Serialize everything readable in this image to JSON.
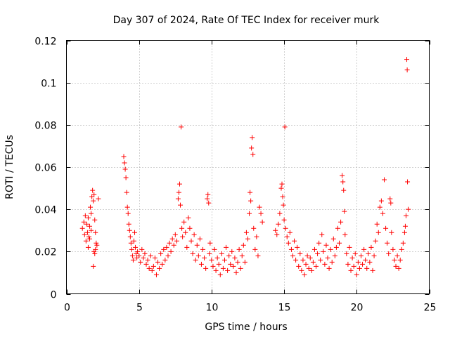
{
  "chart_data": {
    "type": "scatter",
    "title": "Day 307 of 2024, Rate Of TEC Index for receiver murk",
    "xlabel": "GPS time / hours",
    "ylabel": "ROTI / TECUs",
    "xlim": [
      0,
      25
    ],
    "ylim": [
      0,
      0.12
    ],
    "xticks": [
      0,
      5,
      10,
      15,
      20,
      25
    ],
    "xtick_labels": [
      "0",
      "5",
      "10",
      "15",
      "20",
      "25"
    ],
    "yticks": [
      0,
      0.02,
      0.04,
      0.06,
      0.08,
      0.1,
      0.12
    ],
    "ytick_labels": [
      "0",
      "0.02",
      "0.04",
      "0.06",
      "0.08",
      "0.1",
      "0.12"
    ],
    "grid": true,
    "marker": "+",
    "color": "#ff0000",
    "series": [
      {
        "name": "ROTI",
        "points": [
          [
            1.1,
            0.031
          ],
          [
            1.2,
            0.034
          ],
          [
            1.25,
            0.028
          ],
          [
            1.3,
            0.037
          ],
          [
            1.35,
            0.025
          ],
          [
            1.4,
            0.033
          ],
          [
            1.45,
            0.029
          ],
          [
            1.5,
            0.036
          ],
          [
            1.55,
            0.027
          ],
          [
            1.6,
            0.032
          ],
          [
            1.65,
            0.041
          ],
          [
            1.7,
            0.038
          ],
          [
            1.75,
            0.046
          ],
          [
            1.8,
            0.049
          ],
          [
            1.85,
            0.044
          ],
          [
            1.9,
            0.047
          ],
          [
            1.95,
            0.035
          ],
          [
            2.0,
            0.029
          ],
          [
            2.05,
            0.024
          ],
          [
            1.9,
            0.02
          ],
          [
            1.95,
            0.019
          ],
          [
            1.85,
            0.013
          ],
          [
            2.0,
            0.021
          ],
          [
            2.1,
            0.023
          ],
          [
            2.2,
            0.045
          ],
          [
            1.6,
            0.026
          ],
          [
            1.7,
            0.03
          ],
          [
            1.5,
            0.022
          ],
          [
            3.95,
            0.065
          ],
          [
            4.0,
            0.062
          ],
          [
            4.05,
            0.059
          ],
          [
            4.1,
            0.055
          ],
          [
            4.15,
            0.048
          ],
          [
            4.2,
            0.041
          ],
          [
            4.25,
            0.038
          ],
          [
            4.3,
            0.033
          ],
          [
            4.35,
            0.03
          ],
          [
            4.4,
            0.027
          ],
          [
            4.45,
            0.024
          ],
          [
            4.5,
            0.021
          ],
          [
            4.55,
            0.018
          ],
          [
            4.6,
            0.016
          ],
          [
            4.65,
            0.025
          ],
          [
            4.7,
            0.029
          ],
          [
            4.75,
            0.022
          ],
          [
            4.8,
            0.019
          ],
          [
            4.85,
            0.017
          ],
          [
            4.9,
            0.02
          ],
          [
            5.0,
            0.018
          ],
          [
            5.1,
            0.015
          ],
          [
            5.2,
            0.021
          ],
          [
            5.3,
            0.017
          ],
          [
            5.4,
            0.019
          ],
          [
            5.5,
            0.014
          ],
          [
            5.6,
            0.016
          ],
          [
            5.7,
            0.012
          ],
          [
            5.8,
            0.018
          ],
          [
            5.9,
            0.011
          ],
          [
            6.0,
            0.013
          ],
          [
            6.1,
            0.017
          ],
          [
            6.2,
            0.009
          ],
          [
            6.3,
            0.015
          ],
          [
            6.4,
            0.012
          ],
          [
            6.5,
            0.019
          ],
          [
            6.6,
            0.014
          ],
          [
            6.7,
            0.021
          ],
          [
            6.8,
            0.016
          ],
          [
            6.9,
            0.022
          ],
          [
            7.0,
            0.018
          ],
          [
            7.1,
            0.024
          ],
          [
            7.2,
            0.02
          ],
          [
            7.3,
            0.026
          ],
          [
            7.4,
            0.023
          ],
          [
            7.5,
            0.028
          ],
          [
            7.6,
            0.025
          ],
          [
            7.7,
            0.045
          ],
          [
            7.75,
            0.048
          ],
          [
            7.8,
            0.052
          ],
          [
            7.85,
            0.042
          ],
          [
            7.9,
            0.079
          ],
          [
            7.95,
            0.031
          ],
          [
            8.0,
            0.027
          ],
          [
            8.1,
            0.034
          ],
          [
            8.2,
            0.029
          ],
          [
            8.3,
            0.022
          ],
          [
            8.4,
            0.036
          ],
          [
            8.5,
            0.031
          ],
          [
            8.6,
            0.025
          ],
          [
            8.7,
            0.019
          ],
          [
            8.8,
            0.028
          ],
          [
            8.9,
            0.016
          ],
          [
            9.0,
            0.023
          ],
          [
            9.1,
            0.018
          ],
          [
            9.2,
            0.026
          ],
          [
            9.3,
            0.014
          ],
          [
            9.4,
            0.021
          ],
          [
            9.5,
            0.017
          ],
          [
            9.6,
            0.012
          ],
          [
            9.7,
            0.045
          ],
          [
            9.75,
            0.047
          ],
          [
            9.8,
            0.043
          ],
          [
            9.85,
            0.019
          ],
          [
            9.9,
            0.024
          ],
          [
            10.0,
            0.016
          ],
          [
            10.1,
            0.013
          ],
          [
            10.2,
            0.021
          ],
          [
            10.3,
            0.011
          ],
          [
            10.4,
            0.017
          ],
          [
            10.5,
            0.014
          ],
          [
            10.6,
            0.009
          ],
          [
            10.7,
            0.019
          ],
          [
            10.8,
            0.012
          ],
          [
            10.9,
            0.016
          ],
          [
            11.0,
            0.022
          ],
          [
            11.1,
            0.011
          ],
          [
            11.2,
            0.018
          ],
          [
            11.3,
            0.014
          ],
          [
            11.4,
            0.02
          ],
          [
            11.5,
            0.013
          ],
          [
            11.6,
            0.017
          ],
          [
            11.7,
            0.01
          ],
          [
            11.8,
            0.015
          ],
          [
            11.9,
            0.021
          ],
          [
            12.0,
            0.012
          ],
          [
            12.1,
            0.018
          ],
          [
            12.2,
            0.023
          ],
          [
            12.3,
            0.015
          ],
          [
            12.4,
            0.029
          ],
          [
            12.5,
            0.026
          ],
          [
            12.6,
            0.038
          ],
          [
            12.65,
            0.048
          ],
          [
            12.7,
            0.044
          ],
          [
            12.75,
            0.069
          ],
          [
            12.8,
            0.074
          ],
          [
            12.85,
            0.066
          ],
          [
            12.9,
            0.031
          ],
          [
            13.0,
            0.021
          ],
          [
            13.1,
            0.027
          ],
          [
            13.2,
            0.018
          ],
          [
            13.3,
            0.041
          ],
          [
            13.4,
            0.038
          ],
          [
            13.5,
            0.034
          ],
          [
            14.4,
            0.03
          ],
          [
            14.5,
            0.028
          ],
          [
            14.6,
            0.033
          ],
          [
            14.7,
            0.038
          ],
          [
            14.8,
            0.05
          ],
          [
            14.85,
            0.052
          ],
          [
            14.9,
            0.046
          ],
          [
            14.95,
            0.042
          ],
          [
            15.0,
            0.035
          ],
          [
            15.05,
            0.079
          ],
          [
            15.1,
            0.031
          ],
          [
            15.2,
            0.027
          ],
          [
            15.3,
            0.024
          ],
          [
            15.4,
            0.029
          ],
          [
            15.5,
            0.021
          ],
          [
            15.6,
            0.018
          ],
          [
            15.7,
            0.025
          ],
          [
            15.8,
            0.016
          ],
          [
            15.9,
            0.022
          ],
          [
            16.0,
            0.013
          ],
          [
            16.1,
            0.019
          ],
          [
            16.2,
            0.011
          ],
          [
            16.3,
            0.016
          ],
          [
            16.4,
            0.009
          ],
          [
            16.5,
            0.014
          ],
          [
            16.6,
            0.018
          ],
          [
            16.7,
            0.012
          ],
          [
            16.8,
            0.017
          ],
          [
            16.9,
            0.011
          ],
          [
            17.0,
            0.015
          ],
          [
            17.1,
            0.021
          ],
          [
            17.2,
            0.013
          ],
          [
            17.3,
            0.019
          ],
          [
            17.4,
            0.024
          ],
          [
            17.5,
            0.016
          ],
          [
            17.6,
            0.028
          ],
          [
            17.7,
            0.02
          ],
          [
            17.8,
            0.014
          ],
          [
            17.9,
            0.023
          ],
          [
            18.0,
            0.017
          ],
          [
            18.1,
            0.012
          ],
          [
            18.2,
            0.021
          ],
          [
            18.3,
            0.015
          ],
          [
            18.4,
            0.026
          ],
          [
            18.5,
            0.018
          ],
          [
            18.6,
            0.022
          ],
          [
            18.7,
            0.031
          ],
          [
            18.8,
            0.024
          ],
          [
            18.9,
            0.034
          ],
          [
            19.0,
            0.056
          ],
          [
            19.05,
            0.053
          ],
          [
            19.1,
            0.049
          ],
          [
            19.15,
            0.039
          ],
          [
            19.2,
            0.028
          ],
          [
            19.3,
            0.019
          ],
          [
            19.4,
            0.014
          ],
          [
            19.5,
            0.022
          ],
          [
            19.6,
            0.011
          ],
          [
            19.7,
            0.017
          ],
          [
            19.8,
            0.013
          ],
          [
            19.9,
            0.019
          ],
          [
            20.0,
            0.009
          ],
          [
            20.1,
            0.015
          ],
          [
            20.2,
            0.012
          ],
          [
            20.3,
            0.018
          ],
          [
            20.4,
            0.014
          ],
          [
            20.5,
            0.021
          ],
          [
            20.6,
            0.016
          ],
          [
            20.7,
            0.012
          ],
          [
            20.8,
            0.019
          ],
          [
            20.9,
            0.015
          ],
          [
            21.0,
            0.022
          ],
          [
            21.1,
            0.011
          ],
          [
            21.2,
            0.018
          ],
          [
            21.3,
            0.025
          ],
          [
            21.4,
            0.033
          ],
          [
            21.5,
            0.029
          ],
          [
            21.6,
            0.041
          ],
          [
            21.7,
            0.044
          ],
          [
            21.8,
            0.038
          ],
          [
            21.9,
            0.054
          ],
          [
            22.0,
            0.031
          ],
          [
            22.1,
            0.024
          ],
          [
            22.2,
            0.019
          ],
          [
            22.3,
            0.045
          ],
          [
            22.35,
            0.043
          ],
          [
            22.4,
            0.029
          ],
          [
            22.5,
            0.021
          ],
          [
            22.6,
            0.016
          ],
          [
            22.7,
            0.013
          ],
          [
            22.8,
            0.018
          ],
          [
            22.9,
            0.012
          ],
          [
            23.0,
            0.016
          ],
          [
            23.1,
            0.021
          ],
          [
            23.2,
            0.024
          ],
          [
            23.3,
            0.029
          ],
          [
            23.35,
            0.032
          ],
          [
            23.4,
            0.037
          ],
          [
            23.45,
            0.111
          ],
          [
            23.48,
            0.106
          ],
          [
            23.5,
            0.053
          ],
          [
            23.55,
            0.04
          ]
        ]
      }
    ]
  }
}
